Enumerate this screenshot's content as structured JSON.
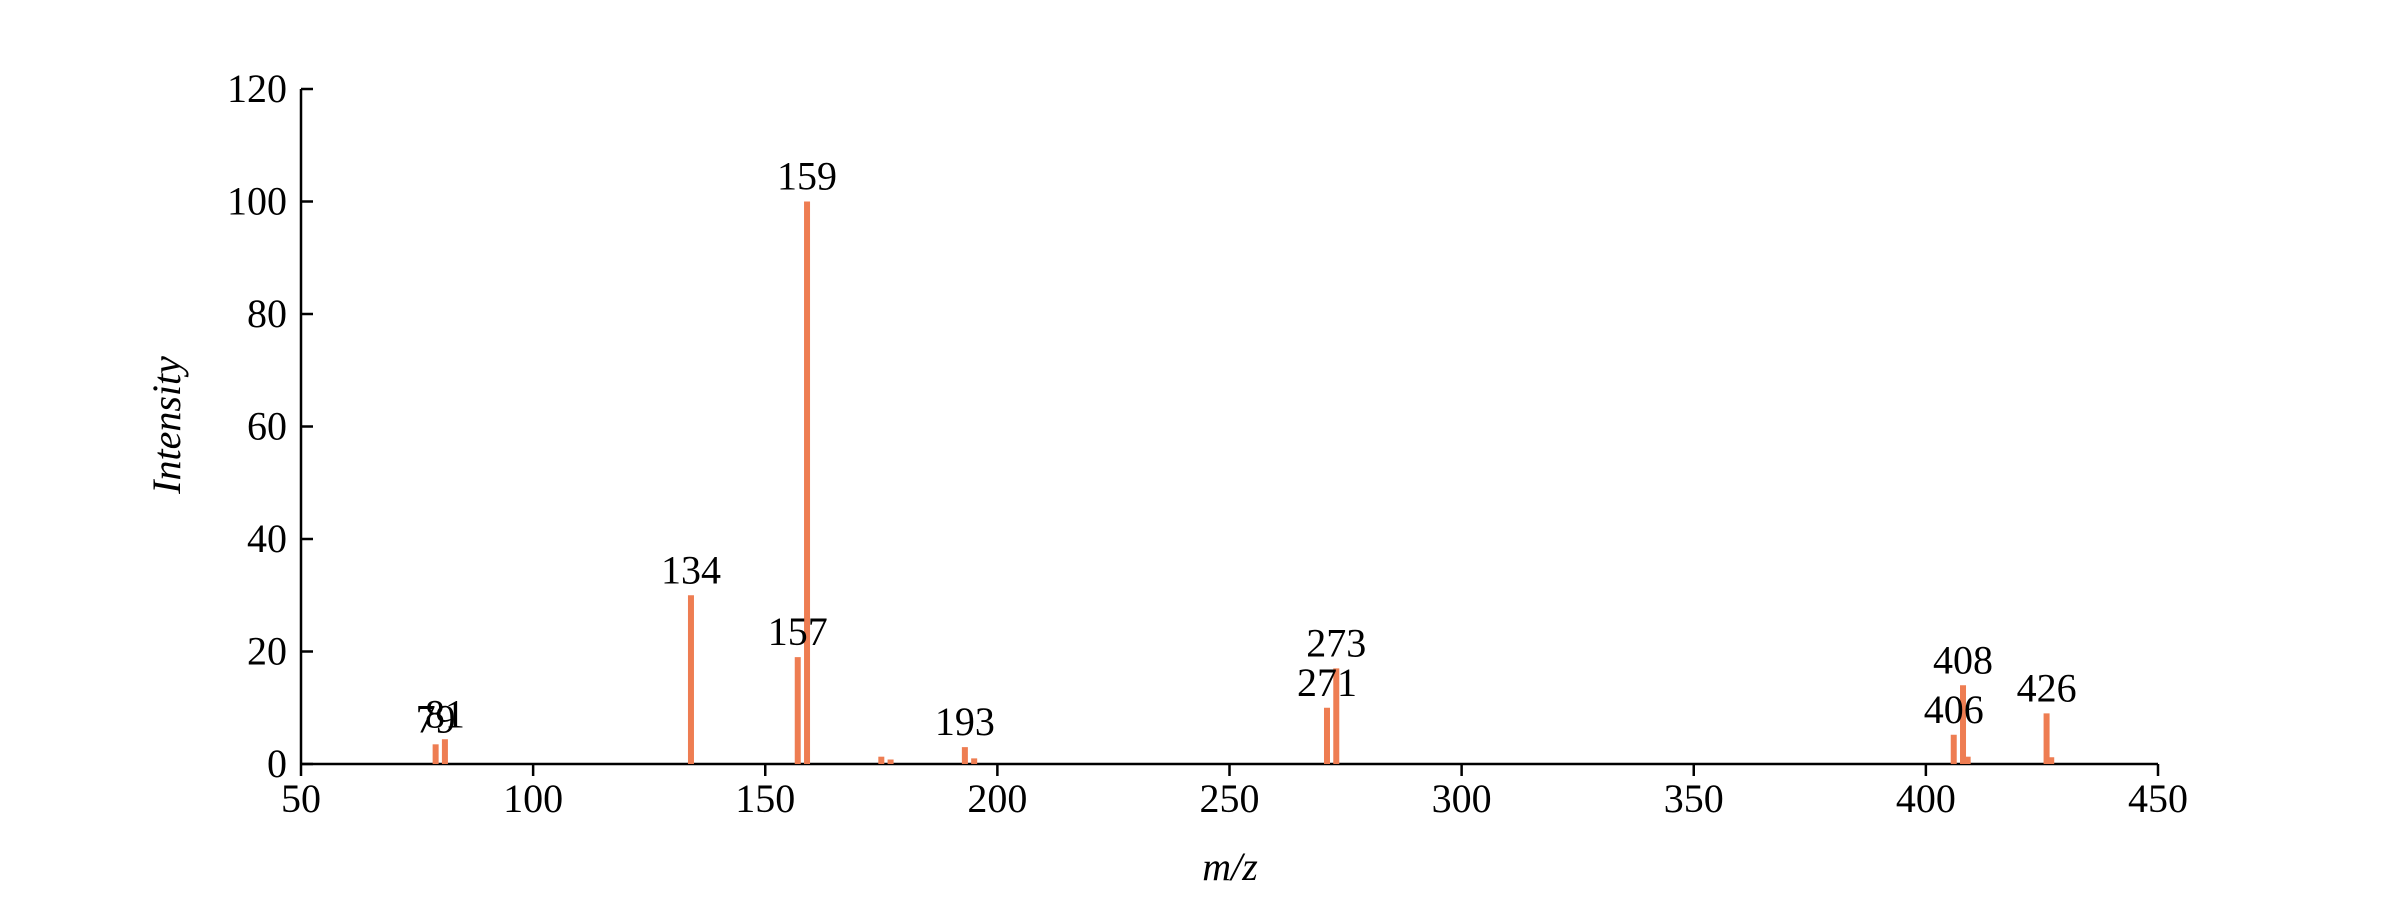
{
  "chart_data": {
    "type": "bar",
    "x_label": "m/z",
    "y_label": "Intensity",
    "x": [
      79,
      81,
      134,
      157,
      159,
      175,
      177,
      193,
      195,
      271,
      273,
      406,
      408,
      409,
      426,
      427
    ],
    "values": [
      3.5,
      4.4,
      30,
      19,
      100,
      1.3,
      0.8,
      3,
      1,
      10,
      17,
      5.2,
      14,
      1.3,
      9,
      1.2
    ],
    "peak_labels": [
      79,
      81,
      134,
      157,
      159,
      193,
      271,
      273,
      406,
      408,
      426
    ],
    "color": "#ee7d52",
    "xlim": [
      50,
      450
    ],
    "xticks": [
      50,
      100,
      150,
      200,
      250,
      300,
      350,
      400,
      450
    ],
    "ylim": [
      0,
      120
    ],
    "yticks": [
      0,
      20,
      40,
      60,
      80,
      100,
      120
    ]
  }
}
